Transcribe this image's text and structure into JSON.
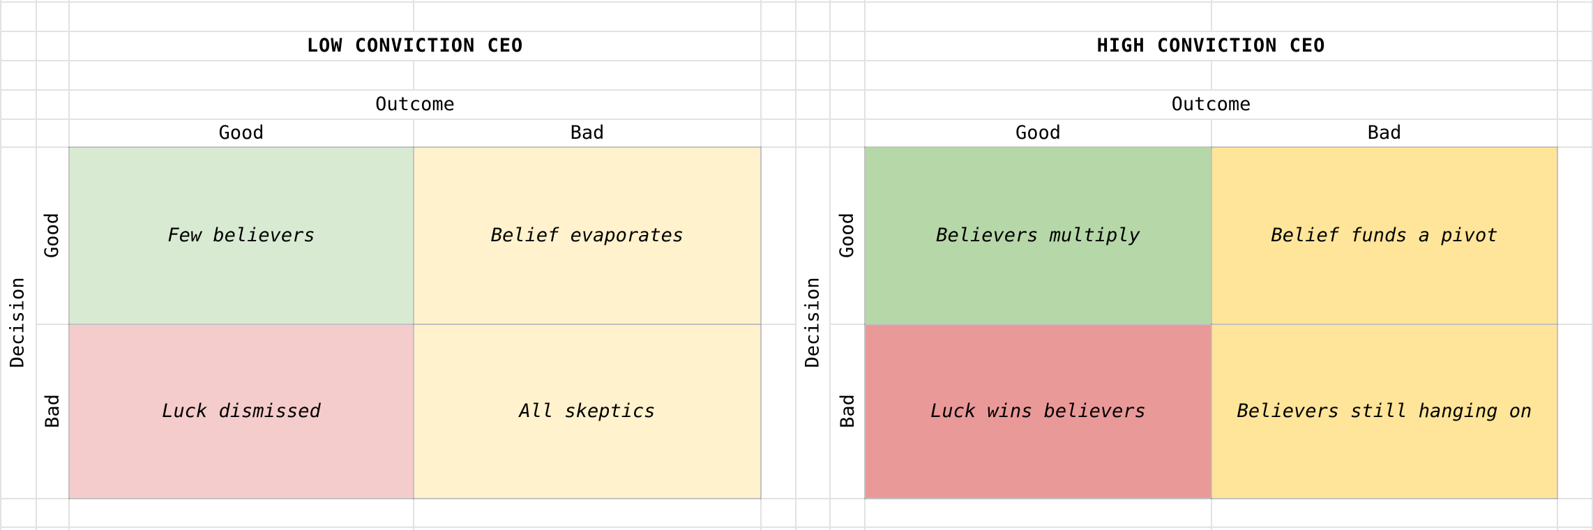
{
  "page": {
    "background": "#ffffff",
    "gridline_color": "#e2e2e2",
    "matrix_border_color": "rgba(0,0,0,0.14)",
    "text_color": "#000000"
  },
  "matrices": [
    {
      "title": "LOW CONVICTION CEO",
      "column_axis_label": "Outcome",
      "row_axis_label": "Decision",
      "column_headers": [
        "Good",
        "Bad"
      ],
      "row_headers": [
        "Good",
        "Bad"
      ],
      "quadrants": [
        {
          "decision": "Good",
          "outcome": "Good",
          "label": "Few believers",
          "color": "#d9ead3"
        },
        {
          "decision": "Good",
          "outcome": "Bad",
          "label": "Belief evaporates",
          "color": "#fff2cc"
        },
        {
          "decision": "Bad",
          "outcome": "Good",
          "label": "Luck dismissed",
          "color": "#f4cccc"
        },
        {
          "decision": "Bad",
          "outcome": "Bad",
          "label": "All skeptics",
          "color": "#fff2cc"
        }
      ]
    },
    {
      "title": "HIGH CONVICTION CEO",
      "column_axis_label": "Outcome",
      "row_axis_label": "Decision",
      "column_headers": [
        "Good",
        "Bad"
      ],
      "row_headers": [
        "Good",
        "Bad"
      ],
      "quadrants": [
        {
          "decision": "Good",
          "outcome": "Good",
          "label": "Believers multiply",
          "color": "#b6d7a8"
        },
        {
          "decision": "Good",
          "outcome": "Bad",
          "label": "Belief funds a pivot",
          "color": "#ffe599"
        },
        {
          "decision": "Bad",
          "outcome": "Good",
          "label": "Luck wins believers",
          "color": "#ea9999"
        },
        {
          "decision": "Bad",
          "outcome": "Bad",
          "label": "Believers still hanging on",
          "color": "#ffe599"
        }
      ]
    }
  ]
}
